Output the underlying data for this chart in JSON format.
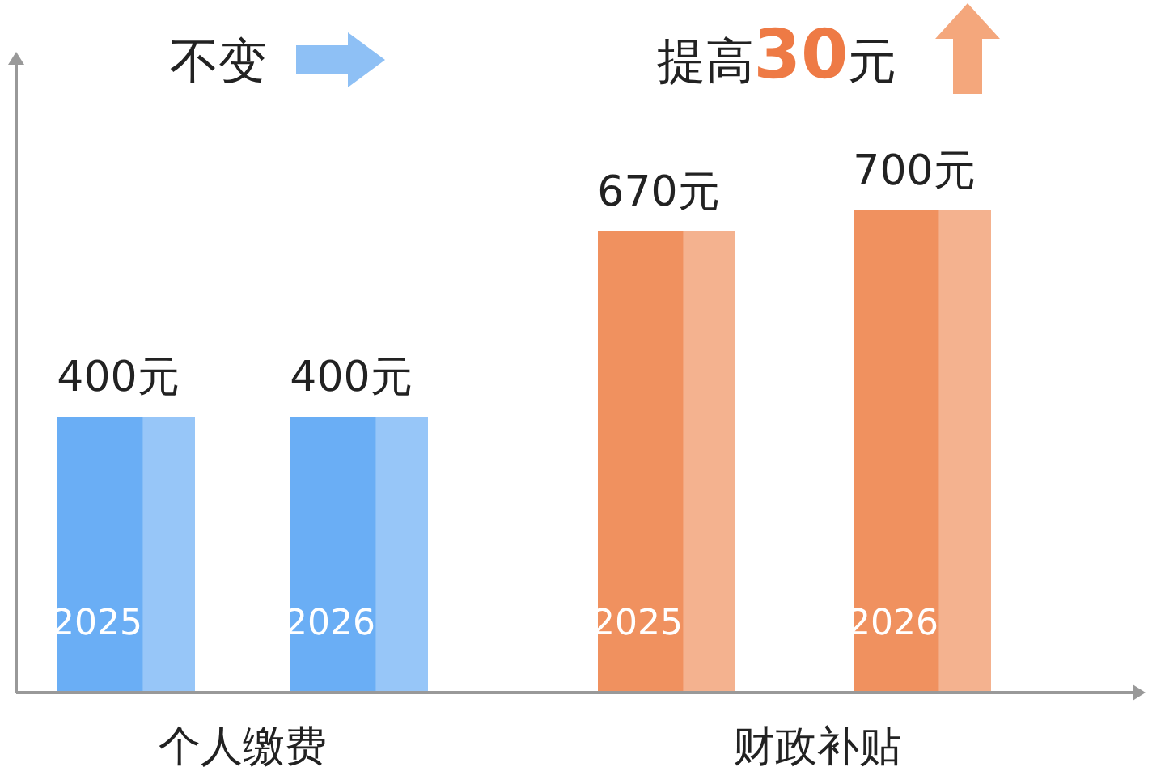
{
  "chart_data": {
    "type": "bar",
    "categories": [
      "2025",
      "2026",
      "2025",
      "2026"
    ],
    "series": [
      {
        "values": [
          400,
          400,
          670,
          700
        ],
        "colors": [
          "#6aaef5",
          "#6aaef5",
          "#f0915f",
          "#f0915f"
        ],
        "value_labels": [
          "400元",
          "400元",
          "670元",
          "700元"
        ]
      }
    ],
    "tick_labels": "x",
    "annotations": [
      "不变",
      "提高**30**元",
      "个人缴费",
      "财政补贴"
    ]
  }
}
